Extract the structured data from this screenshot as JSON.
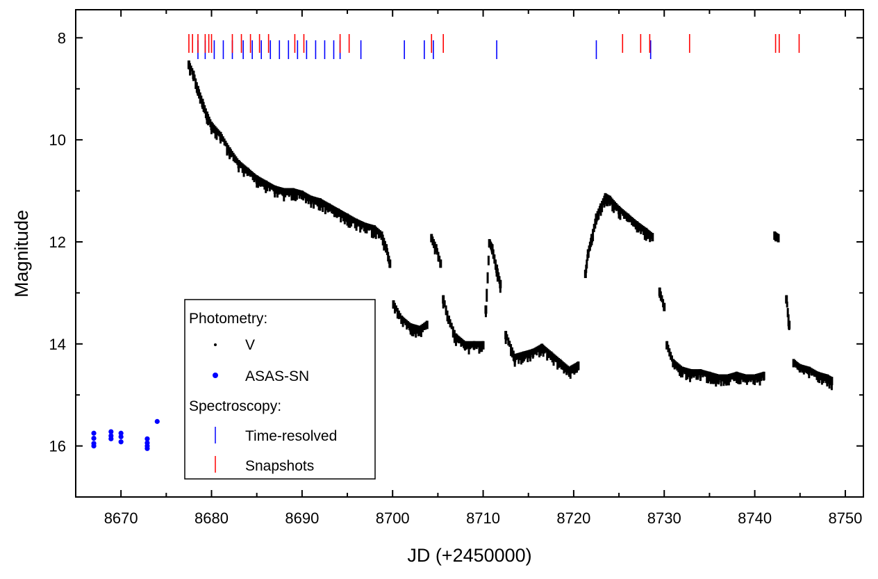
{
  "chart_data": {
    "type": "scatter",
    "title": "",
    "xlabel": "JD (+2450000)",
    "ylabel": "Magnitude",
    "xlim": [
      8665,
      8752
    ],
    "ylim": [
      17.0,
      7.45
    ],
    "y_inverted": true,
    "grid": false,
    "legend_placement": "lower-left",
    "x_ticks": [
      8670,
      8680,
      8690,
      8700,
      8710,
      8720,
      8730,
      8740,
      8750
    ],
    "y_ticks": [
      8,
      10,
      12,
      14,
      16
    ],
    "legend": {
      "photometry_heading": "Photometry:",
      "spectroscopy_heading": "Spectroscopy:",
      "entries": [
        "V",
        "ASAS-SN",
        "Time-resolved",
        "Snapshots"
      ]
    },
    "colors": {
      "V": "#000000",
      "ASAS-SN": "#0000ff",
      "Time-resolved": "#0000ff",
      "Snapshots": "#ff0000"
    },
    "series": [
      {
        "name": "V",
        "marker": "dot",
        "segments": [
          {
            "x": [
              8677.5,
              8678.0,
              8678.5,
              8679.0,
              8679.5,
              8680.0,
              8681.0,
              8682.0,
              8683.0,
              8684.0,
              8685.0,
              8686.0,
              8687.0,
              8688.0,
              8689.0,
              8690.0,
              8691.0,
              8692.0,
              8693.0,
              8694.0,
              8695.0,
              8696.0,
              8697.0,
              8698.0,
              8698.8,
              8699.3,
              8699.7
            ],
            "y": [
              8.5,
              8.7,
              9.0,
              9.25,
              9.5,
              9.7,
              9.9,
              10.2,
              10.45,
              10.6,
              10.75,
              10.85,
              10.95,
              11.0,
              11.0,
              11.05,
              11.15,
              11.2,
              11.3,
              11.4,
              11.5,
              11.6,
              11.68,
              11.73,
              11.85,
              12.1,
              12.4
            ]
          },
          {
            "x": [
              8700.1,
              8701.0,
              8702.0,
              8703.0,
              8703.8
            ],
            "y": [
              13.2,
              13.5,
              13.65,
              13.7,
              13.6
            ]
          },
          {
            "x": [
              8704.3,
              8704.8,
              8705.3
            ],
            "y": [
              11.9,
              12.1,
              12.4
            ]
          },
          {
            "x": [
              8705.6,
              8706.2,
              8707.0,
              8708.0,
              8709.0,
              8710.0
            ],
            "y": [
              13.1,
              13.5,
              13.85,
              14.0,
              14.0,
              14.0
            ]
          },
          {
            "x": [
              8710.3,
              8710.7,
              8711.0,
              8711.5,
              8711.9
            ],
            "y": [
              13.3,
              12.0,
              12.1,
              12.5,
              12.8
            ]
          },
          {
            "x": [
              8712.5,
              8713.5,
              8714.5,
              8715.5,
              8716.5,
              8717.5,
              8718.5,
              8719.5,
              8720.5
            ],
            "y": [
              13.8,
              14.25,
              14.2,
              14.15,
              14.05,
              14.2,
              14.35,
              14.5,
              14.4
            ]
          },
          {
            "x": [
              8721.3,
              8721.6,
              8722.0,
              8722.5,
              8723.0,
              8723.5,
              8724.0,
              8725.0,
              8726.0,
              8727.0,
              8728.0,
              8728.7
            ],
            "y": [
              12.6,
              12.2,
              11.9,
              11.5,
              11.3,
              11.1,
              11.15,
              11.35,
              11.5,
              11.65,
              11.78,
              11.88
            ]
          },
          {
            "x": [
              8729.5,
              8730.0
            ],
            "y": [
              12.95,
              13.25
            ]
          },
          {
            "x": [
              8730.3,
              8731.0,
              8732.0,
              8733.0,
              8734.0,
              8735.0,
              8736.0,
              8737.0,
              8738.0,
              8739.0,
              8740.0,
              8741.0
            ],
            "y": [
              14.0,
              14.35,
              14.5,
              14.55,
              14.55,
              14.6,
              14.65,
              14.65,
              14.6,
              14.65,
              14.65,
              14.6
            ]
          },
          {
            "x": [
              8742.2,
              8742.6
            ],
            "y": [
              11.85,
              11.9
            ]
          },
          {
            "x": [
              8743.5,
              8743.8
            ],
            "y": [
              13.1,
              13.6
            ]
          },
          {
            "x": [
              8744.3,
              8745.0,
              8746.0,
              8747.0,
              8748.0,
              8748.5
            ],
            "y": [
              14.35,
              14.45,
              14.5,
              14.6,
              14.65,
              14.7
            ]
          }
        ]
      },
      {
        "name": "ASAS-SN",
        "marker": "circle",
        "x": [
          8667.0,
          8667.0,
          8667.0,
          8667.0,
          8668.9,
          8668.9,
          8668.9,
          8670.0,
          8670.0,
          8670.0,
          8672.9,
          8672.9,
          8672.9,
          8672.9,
          8674.0
        ],
        "y": [
          15.75,
          15.85,
          15.95,
          16.0,
          15.72,
          15.8,
          15.86,
          15.75,
          15.82,
          15.92,
          15.86,
          15.94,
          16.0,
          16.05,
          15.52
        ]
      },
      {
        "name": "Time-resolved",
        "marker": "vline",
        "x": [
          8678.5,
          8679.3,
          8680.3,
          8681.3,
          8682.3,
          8683.5,
          8684.5,
          8685.5,
          8686.5,
          8687.5,
          8688.5,
          8689.5,
          8690.5,
          8691.5,
          8692.5,
          8693.5,
          8694.2,
          8696.5,
          8701.3,
          8703.5,
          8704.5,
          8711.5,
          8722.5,
          8728.5
        ]
      },
      {
        "name": "Snapshots",
        "marker": "vline",
        "x": [
          8677.5,
          8677.9,
          8678.5,
          8679.3,
          8679.7,
          8680.0,
          8682.3,
          8683.3,
          8684.3,
          8685.3,
          8686.3,
          8689.2,
          8690.2,
          8694.2,
          8695.2,
          8704.3,
          8705.6,
          8725.4,
          8727.4,
          8728.4,
          8732.8,
          8742.3,
          8742.7,
          8744.9
        ]
      }
    ]
  }
}
